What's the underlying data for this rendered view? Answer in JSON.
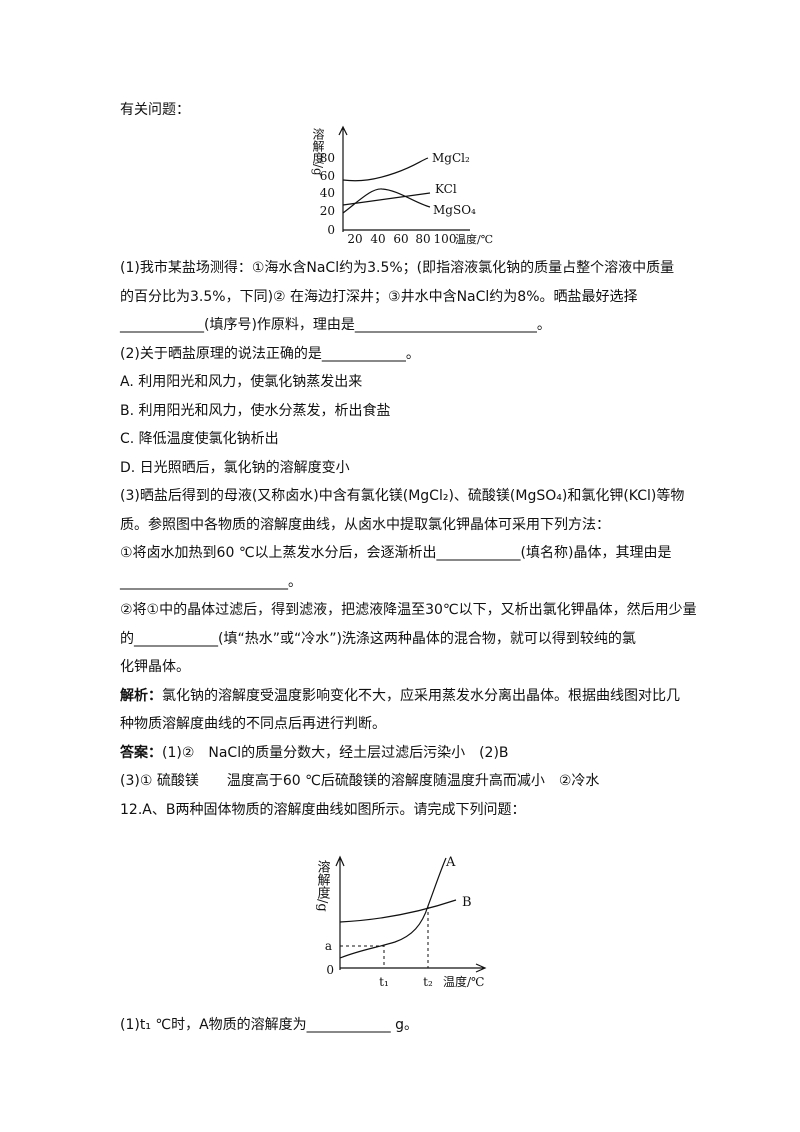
{
  "intro": "有关问题：",
  "figure1": {
    "y_label": "溶解度/g",
    "yticks": [
      "80",
      "60",
      "40",
      "20",
      "0"
    ],
    "xticks": [
      "20",
      "40",
      "60",
      "80",
      "100"
    ],
    "x_label": "温度/℃",
    "curves": [
      "MgCl₂",
      "KCl",
      "MgSO₄"
    ]
  },
  "questions": [
    {
      "text": "(1)我市某盐场测得：①海水含NaCl约为3.5%；(即指溶液氯化钠的质量占整个溶液中质量"
    },
    {
      "text": "的百分比为3.5%，下同)② 在海边打深井；③井水中含NaCl约为8%。晒盐最好选择"
    },
    {
      "text": "____________(填序号)作原料，理由是__________________________。"
    },
    {
      "text": "(2)关于晒盐原理的说法正确的是____________。"
    },
    {
      "text": "A. 利用阳光和风力，使氯化钠蒸发出来"
    },
    {
      "text": "B. 利用阳光和风力，使水分蒸发，析出食盐"
    },
    {
      "text": "C. 降低温度使氯化钠析出"
    },
    {
      "text": "D. 日光照晒后，氯化钠的溶解度变小"
    },
    {
      "text": "(3)晒盐后得到的母液(又称卤水)中含有氯化镁(MgCl₂)、硫酸镁(MgSO₄)和氯化钾(KCl)等物"
    },
    {
      "text": "质。参照图中各物质的溶解度曲线，从卤水中提取氯化钾晶体可采用下列方法："
    },
    {
      "text": "①将卤水加热到60 ℃以上蒸发水分后，会逐渐析出____________(填名称)晶体，其理由是"
    },
    {
      "text": "________________________。"
    },
    {
      "text": "②将①中的晶体过滤后，得到滤液，把滤液降温至30℃以下，又析出氯化钾晶体，然后用少量"
    },
    {
      "text": "的____________(填“热水”或“冷水”)洗涤这两种晶体的混合物，就可以得到较纯的氯"
    },
    {
      "text": "化钾晶体。"
    },
    {
      "label": "解析：",
      "text": "氯化钠的溶解度受温度影响变化不大，应采用蒸发水分离出晶体。根据曲线图对比几"
    },
    {
      "text": "种物质溶解度曲线的不同点后再进行判断。"
    },
    {
      "label": "答案：",
      "text": "(1)②　NaCl的质量分数大，经土层过滤后污染小　(2)B"
    },
    {
      "text": "(3)① 硫酸镁　　温度高于60 ℃后硫酸镁的溶解度随温度升高而减小　②冷水"
    },
    {
      "text": "12.A、B两种固体物质的溶解度曲线如图所示。请完成下列问题："
    }
  ],
  "figure2": {
    "y_label": "溶解度/g",
    "yticks": [
      "a",
      "0"
    ],
    "xticks": [
      "t₁",
      "t₂"
    ],
    "x_label": "温度/℃",
    "curves": [
      "A",
      "B"
    ]
  },
  "last": "(1)t₁ ℃时，A物质的溶解度为____________ g。"
}
